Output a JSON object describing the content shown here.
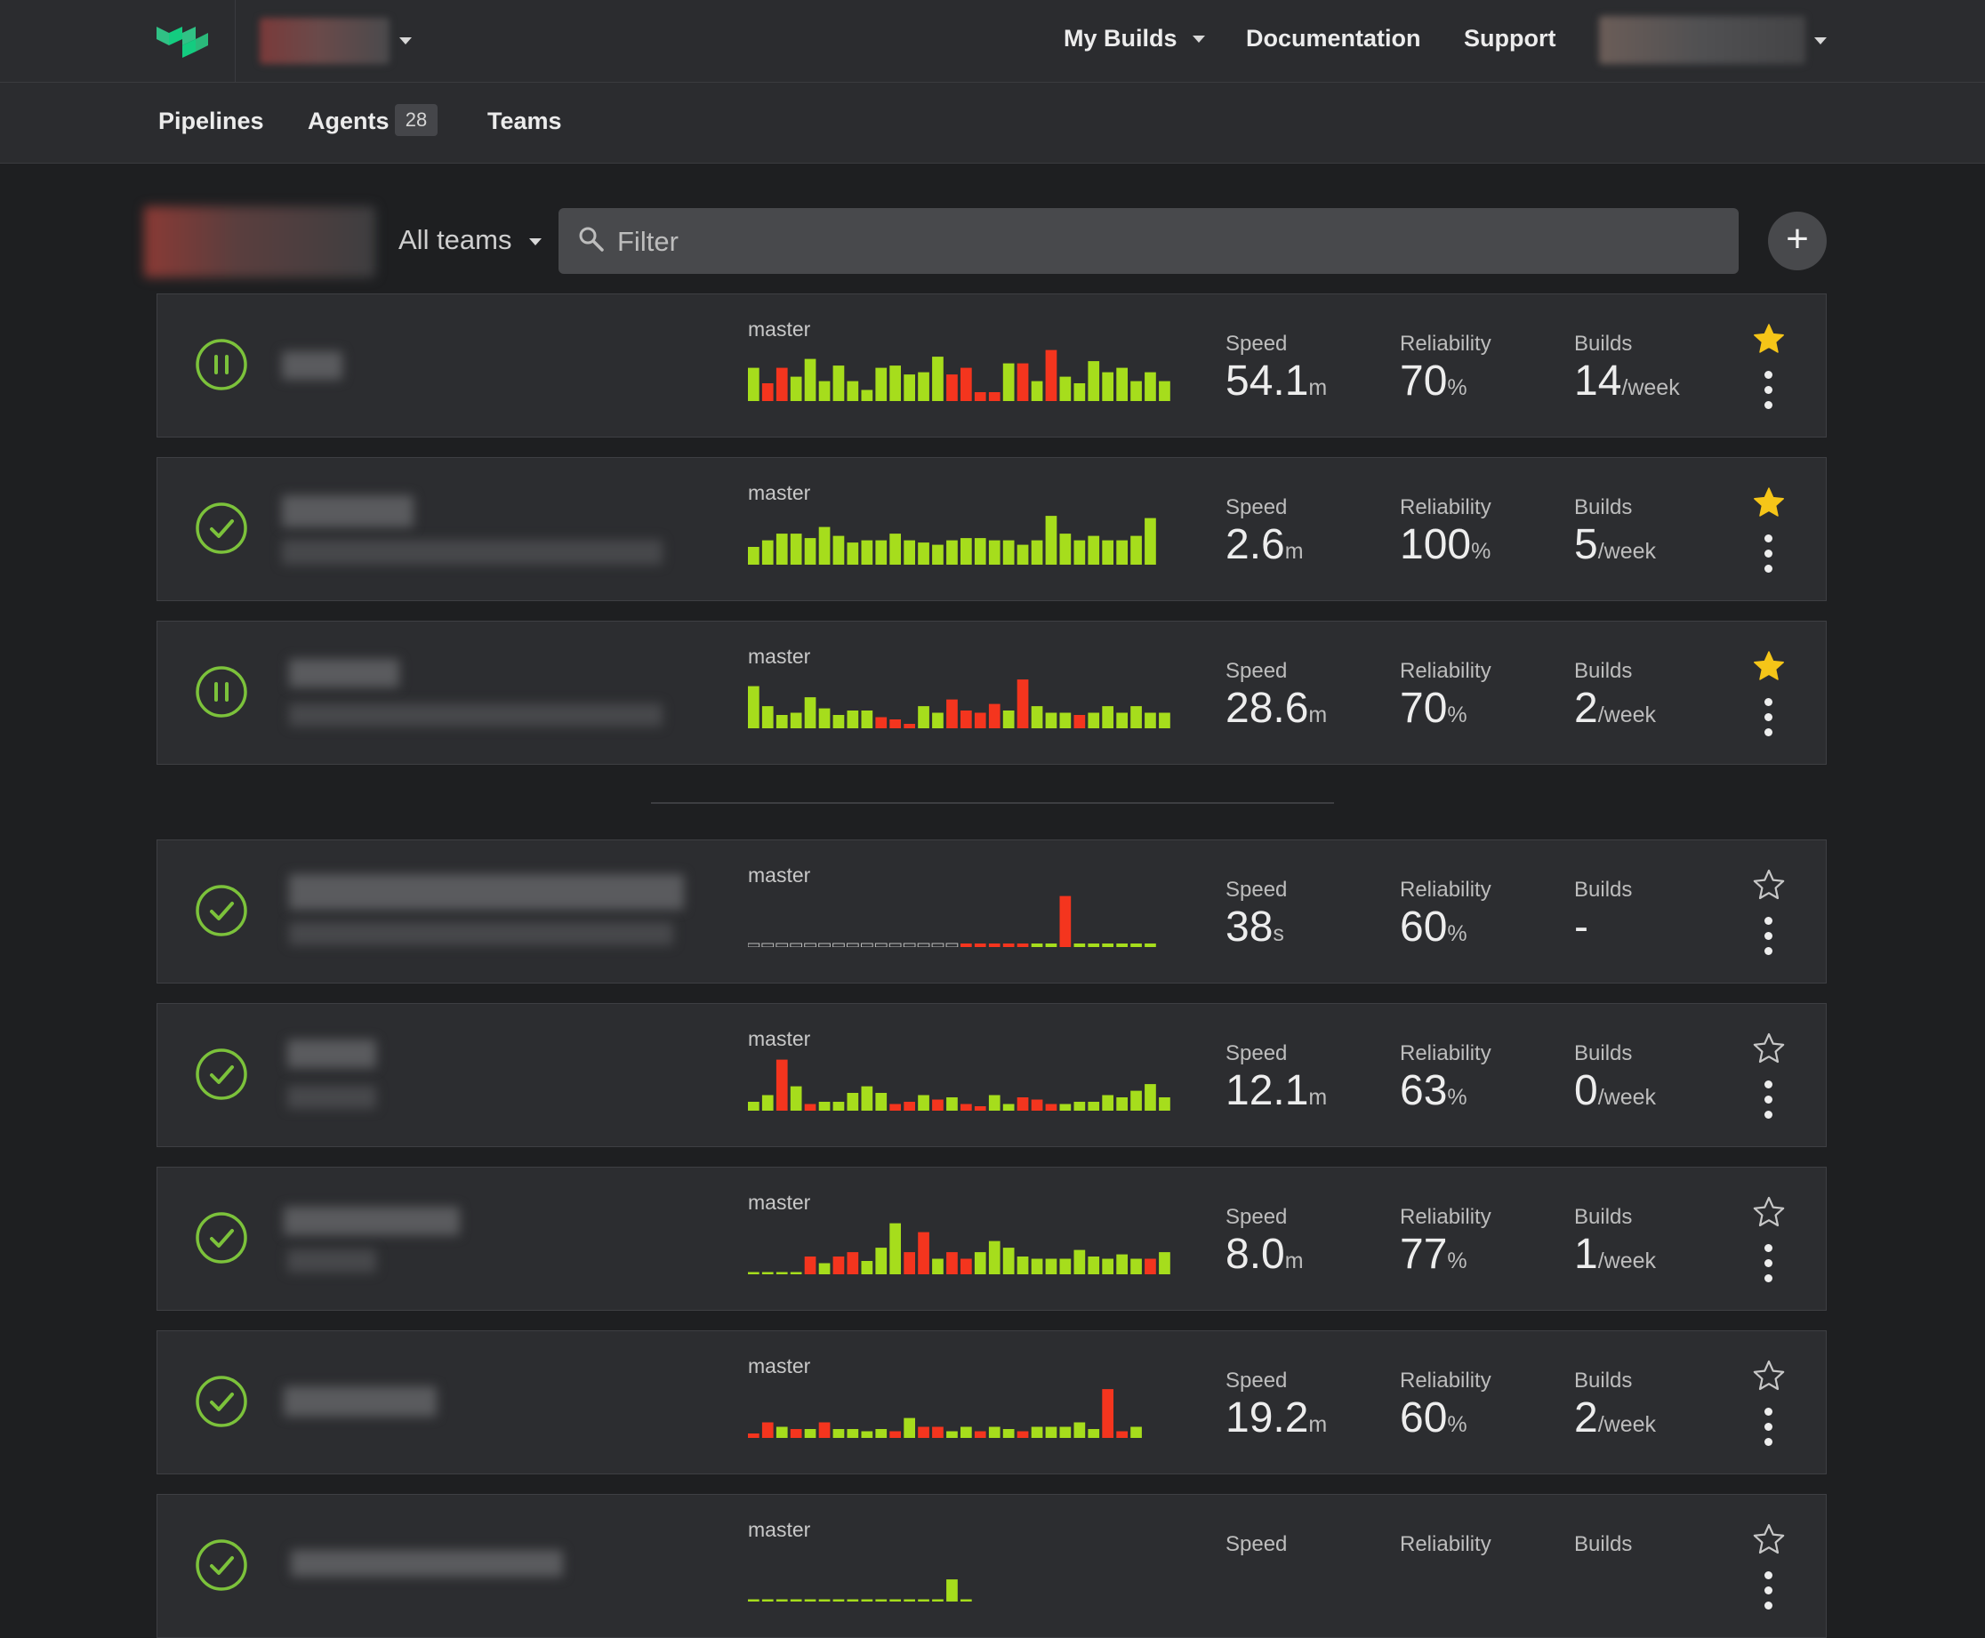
{
  "header": {
    "nav": [
      {
        "label": "My Builds",
        "has_caret": true
      },
      {
        "label": "Documentation"
      },
      {
        "label": "Support"
      }
    ]
  },
  "subnav": {
    "pipelines": "Pipelines",
    "agents": "Agents",
    "agents_count": "28",
    "teams": "Teams"
  },
  "filterbar": {
    "teams_label": "All teams",
    "filter_placeholder": "Filter",
    "add_label": "+"
  },
  "colors": {
    "pass": "#a6dd1c",
    "fail": "#f4351e",
    "status": "#7cc23b",
    "star_on": "#f5c518"
  },
  "labels": {
    "speed": "Speed",
    "reliability": "Reliability",
    "builds": "Builds"
  },
  "pipelines": [
    {
      "status": "paused",
      "branch": "master",
      "starred": true,
      "speed": "54.1",
      "speed_unit": "m",
      "reliability": "70",
      "reliability_unit": "%",
      "builds": "14",
      "builds_unit": "/week",
      "history": [
        [
          0.75,
          "p"
        ],
        [
          0.4,
          "f"
        ],
        [
          0.75,
          "f"
        ],
        [
          0.55,
          "p"
        ],
        [
          0.95,
          "p"
        ],
        [
          0.45,
          "p"
        ],
        [
          0.8,
          "p"
        ],
        [
          0.45,
          "p"
        ],
        [
          0.25,
          "p"
        ],
        [
          0.75,
          "p"
        ],
        [
          0.8,
          "p"
        ],
        [
          0.6,
          "p"
        ],
        [
          0.65,
          "p"
        ],
        [
          1.0,
          "p"
        ],
        [
          0.6,
          "f"
        ],
        [
          0.75,
          "f"
        ],
        [
          0.2,
          "f"
        ],
        [
          0.2,
          "f"
        ],
        [
          0.85,
          "p"
        ],
        [
          0.85,
          "f"
        ],
        [
          0.45,
          "p"
        ],
        [
          1.15,
          "f"
        ],
        [
          0.55,
          "p"
        ],
        [
          0.4,
          "p"
        ],
        [
          0.9,
          "p"
        ],
        [
          0.65,
          "p"
        ],
        [
          0.75,
          "p"
        ],
        [
          0.45,
          "p"
        ],
        [
          0.65,
          "p"
        ],
        [
          0.45,
          "p"
        ]
      ]
    },
    {
      "status": "passed",
      "branch": "master",
      "starred": true,
      "speed": "2.6",
      "speed_unit": "m",
      "reliability": "100",
      "reliability_unit": "%",
      "builds": "5",
      "builds_unit": "/week",
      "history": [
        [
          0.4,
          "p"
        ],
        [
          0.55,
          "p"
        ],
        [
          0.7,
          "p"
        ],
        [
          0.7,
          "p"
        ],
        [
          0.6,
          "p"
        ],
        [
          0.85,
          "p"
        ],
        [
          0.65,
          "p"
        ],
        [
          0.5,
          "p"
        ],
        [
          0.55,
          "p"
        ],
        [
          0.55,
          "p"
        ],
        [
          0.7,
          "p"
        ],
        [
          0.55,
          "p"
        ],
        [
          0.5,
          "p"
        ],
        [
          0.45,
          "p"
        ],
        [
          0.55,
          "p"
        ],
        [
          0.6,
          "p"
        ],
        [
          0.6,
          "p"
        ],
        [
          0.55,
          "p"
        ],
        [
          0.55,
          "p"
        ],
        [
          0.45,
          "p"
        ],
        [
          0.55,
          "p"
        ],
        [
          1.1,
          "p"
        ],
        [
          0.7,
          "p"
        ],
        [
          0.55,
          "p"
        ],
        [
          0.65,
          "p"
        ],
        [
          0.55,
          "p"
        ],
        [
          0.55,
          "p"
        ],
        [
          0.65,
          "p"
        ],
        [
          1.05,
          "p"
        ]
      ]
    },
    {
      "status": "paused",
      "branch": "master",
      "starred": true,
      "speed": "28.6",
      "speed_unit": "m",
      "reliability": "70",
      "reliability_unit": "%",
      "builds": "2",
      "builds_unit": "/week",
      "history": [
        [
          0.95,
          "p"
        ],
        [
          0.5,
          "p"
        ],
        [
          0.3,
          "p"
        ],
        [
          0.35,
          "p"
        ],
        [
          0.7,
          "p"
        ],
        [
          0.45,
          "p"
        ],
        [
          0.3,
          "p"
        ],
        [
          0.4,
          "p"
        ],
        [
          0.4,
          "p"
        ],
        [
          0.25,
          "f"
        ],
        [
          0.2,
          "f"
        ],
        [
          0.1,
          "f"
        ],
        [
          0.5,
          "p"
        ],
        [
          0.35,
          "p"
        ],
        [
          0.65,
          "f"
        ],
        [
          0.4,
          "f"
        ],
        [
          0.35,
          "f"
        ],
        [
          0.55,
          "f"
        ],
        [
          0.4,
          "p"
        ],
        [
          1.1,
          "f"
        ],
        [
          0.5,
          "p"
        ],
        [
          0.35,
          "p"
        ],
        [
          0.35,
          "p"
        ],
        [
          0.3,
          "f"
        ],
        [
          0.35,
          "p"
        ],
        [
          0.5,
          "p"
        ],
        [
          0.35,
          "p"
        ],
        [
          0.5,
          "p"
        ],
        [
          0.35,
          "p"
        ],
        [
          0.35,
          "p"
        ]
      ]
    },
    {
      "status": "passed",
      "branch": "master",
      "starred": false,
      "speed": "38",
      "speed_unit": "s",
      "reliability": "60",
      "reliability_unit": "%",
      "builds": "-",
      "builds_unit": "",
      "history": [
        [
          0.08,
          "e"
        ],
        [
          0.08,
          "e"
        ],
        [
          0.08,
          "e"
        ],
        [
          0.08,
          "e"
        ],
        [
          0.08,
          "e"
        ],
        [
          0.08,
          "e"
        ],
        [
          0.08,
          "e"
        ],
        [
          0.08,
          "e"
        ],
        [
          0.08,
          "e"
        ],
        [
          0.08,
          "e"
        ],
        [
          0.08,
          "e"
        ],
        [
          0.08,
          "e"
        ],
        [
          0.08,
          "e"
        ],
        [
          0.08,
          "e"
        ],
        [
          0.08,
          "e"
        ],
        [
          0.08,
          "f"
        ],
        [
          0.08,
          "f"
        ],
        [
          0.08,
          "f"
        ],
        [
          0.08,
          "f"
        ],
        [
          0.08,
          "f"
        ],
        [
          0.08,
          "p"
        ],
        [
          0.08,
          "p"
        ],
        [
          1.15,
          "f"
        ],
        [
          0.08,
          "p"
        ],
        [
          0.08,
          "p"
        ],
        [
          0.08,
          "p"
        ],
        [
          0.08,
          "p"
        ],
        [
          0.08,
          "p"
        ],
        [
          0.08,
          "p"
        ]
      ]
    },
    {
      "status": "passed",
      "branch": "master",
      "starred": false,
      "speed": "12.1",
      "speed_unit": "m",
      "reliability": "63",
      "reliability_unit": "%",
      "builds": "0",
      "builds_unit": "/week",
      "history": [
        [
          0.2,
          "p"
        ],
        [
          0.35,
          "p"
        ],
        [
          1.15,
          "f"
        ],
        [
          0.55,
          "p"
        ],
        [
          0.15,
          "f"
        ],
        [
          0.2,
          "p"
        ],
        [
          0.2,
          "p"
        ],
        [
          0.4,
          "p"
        ],
        [
          0.55,
          "p"
        ],
        [
          0.4,
          "p"
        ],
        [
          0.15,
          "f"
        ],
        [
          0.2,
          "f"
        ],
        [
          0.35,
          "p"
        ],
        [
          0.25,
          "f"
        ],
        [
          0.3,
          "p"
        ],
        [
          0.15,
          "f"
        ],
        [
          0.1,
          "f"
        ],
        [
          0.35,
          "p"
        ],
        [
          0.15,
          "p"
        ],
        [
          0.3,
          "f"
        ],
        [
          0.25,
          "f"
        ],
        [
          0.15,
          "f"
        ],
        [
          0.15,
          "p"
        ],
        [
          0.2,
          "p"
        ],
        [
          0.2,
          "p"
        ],
        [
          0.35,
          "p"
        ],
        [
          0.3,
          "p"
        ],
        [
          0.45,
          "p"
        ],
        [
          0.6,
          "p"
        ],
        [
          0.3,
          "p"
        ]
      ]
    },
    {
      "status": "passed",
      "branch": "master",
      "starred": false,
      "speed": "8.0",
      "speed_unit": "m",
      "reliability": "77",
      "reliability_unit": "%",
      "builds": "1",
      "builds_unit": "/week",
      "history": [
        [
          0.05,
          "p"
        ],
        [
          0.05,
          "p"
        ],
        [
          0.05,
          "p"
        ],
        [
          0.05,
          "p"
        ],
        [
          0.4,
          "f"
        ],
        [
          0.25,
          "p"
        ],
        [
          0.4,
          "f"
        ],
        [
          0.5,
          "f"
        ],
        [
          0.3,
          "p"
        ],
        [
          0.6,
          "p"
        ],
        [
          1.15,
          "p"
        ],
        [
          0.5,
          "f"
        ],
        [
          0.95,
          "f"
        ],
        [
          0.35,
          "p"
        ],
        [
          0.5,
          "f"
        ],
        [
          0.35,
          "f"
        ],
        [
          0.5,
          "p"
        ],
        [
          0.75,
          "p"
        ],
        [
          0.6,
          "p"
        ],
        [
          0.4,
          "p"
        ],
        [
          0.35,
          "p"
        ],
        [
          0.35,
          "p"
        ],
        [
          0.35,
          "p"
        ],
        [
          0.55,
          "p"
        ],
        [
          0.4,
          "p"
        ],
        [
          0.35,
          "p"
        ],
        [
          0.45,
          "p"
        ],
        [
          0.35,
          "p"
        ],
        [
          0.35,
          "f"
        ],
        [
          0.5,
          "p"
        ]
      ]
    },
    {
      "status": "passed",
      "branch": "master",
      "starred": false,
      "speed": "19.2",
      "speed_unit": "m",
      "reliability": "60",
      "reliability_unit": "%",
      "builds": "2",
      "builds_unit": "/week",
      "history": [
        [
          0.1,
          "f"
        ],
        [
          0.35,
          "f"
        ],
        [
          0.25,
          "p"
        ],
        [
          0.2,
          "f"
        ],
        [
          0.2,
          "p"
        ],
        [
          0.35,
          "f"
        ],
        [
          0.2,
          "p"
        ],
        [
          0.2,
          "p"
        ],
        [
          0.15,
          "p"
        ],
        [
          0.2,
          "p"
        ],
        [
          0.15,
          "f"
        ],
        [
          0.45,
          "p"
        ],
        [
          0.25,
          "f"
        ],
        [
          0.25,
          "f"
        ],
        [
          0.15,
          "p"
        ],
        [
          0.25,
          "p"
        ],
        [
          0.15,
          "f"
        ],
        [
          0.25,
          "p"
        ],
        [
          0.2,
          "p"
        ],
        [
          0.15,
          "f"
        ],
        [
          0.25,
          "p"
        ],
        [
          0.25,
          "p"
        ],
        [
          0.25,
          "p"
        ],
        [
          0.35,
          "p"
        ],
        [
          0.2,
          "p"
        ],
        [
          1.1,
          "f"
        ],
        [
          0.15,
          "f"
        ],
        [
          0.25,
          "p"
        ]
      ]
    },
    {
      "status": "passed",
      "branch": "master",
      "starred": false,
      "speed": "",
      "speed_unit": "",
      "reliability": "",
      "reliability_unit": "",
      "builds": "",
      "builds_unit": "",
      "history": [
        [
          0.05,
          "p"
        ],
        [
          0.05,
          "p"
        ],
        [
          0.05,
          "p"
        ],
        [
          0.05,
          "p"
        ],
        [
          0.05,
          "p"
        ],
        [
          0.05,
          "p"
        ],
        [
          0.05,
          "p"
        ],
        [
          0.05,
          "p"
        ],
        [
          0.05,
          "p"
        ],
        [
          0.05,
          "p"
        ],
        [
          0.05,
          "p"
        ],
        [
          0.05,
          "p"
        ],
        [
          0.05,
          "p"
        ],
        [
          0.05,
          "p"
        ],
        [
          0.5,
          "p"
        ],
        [
          0.05,
          "p"
        ]
      ]
    }
  ]
}
